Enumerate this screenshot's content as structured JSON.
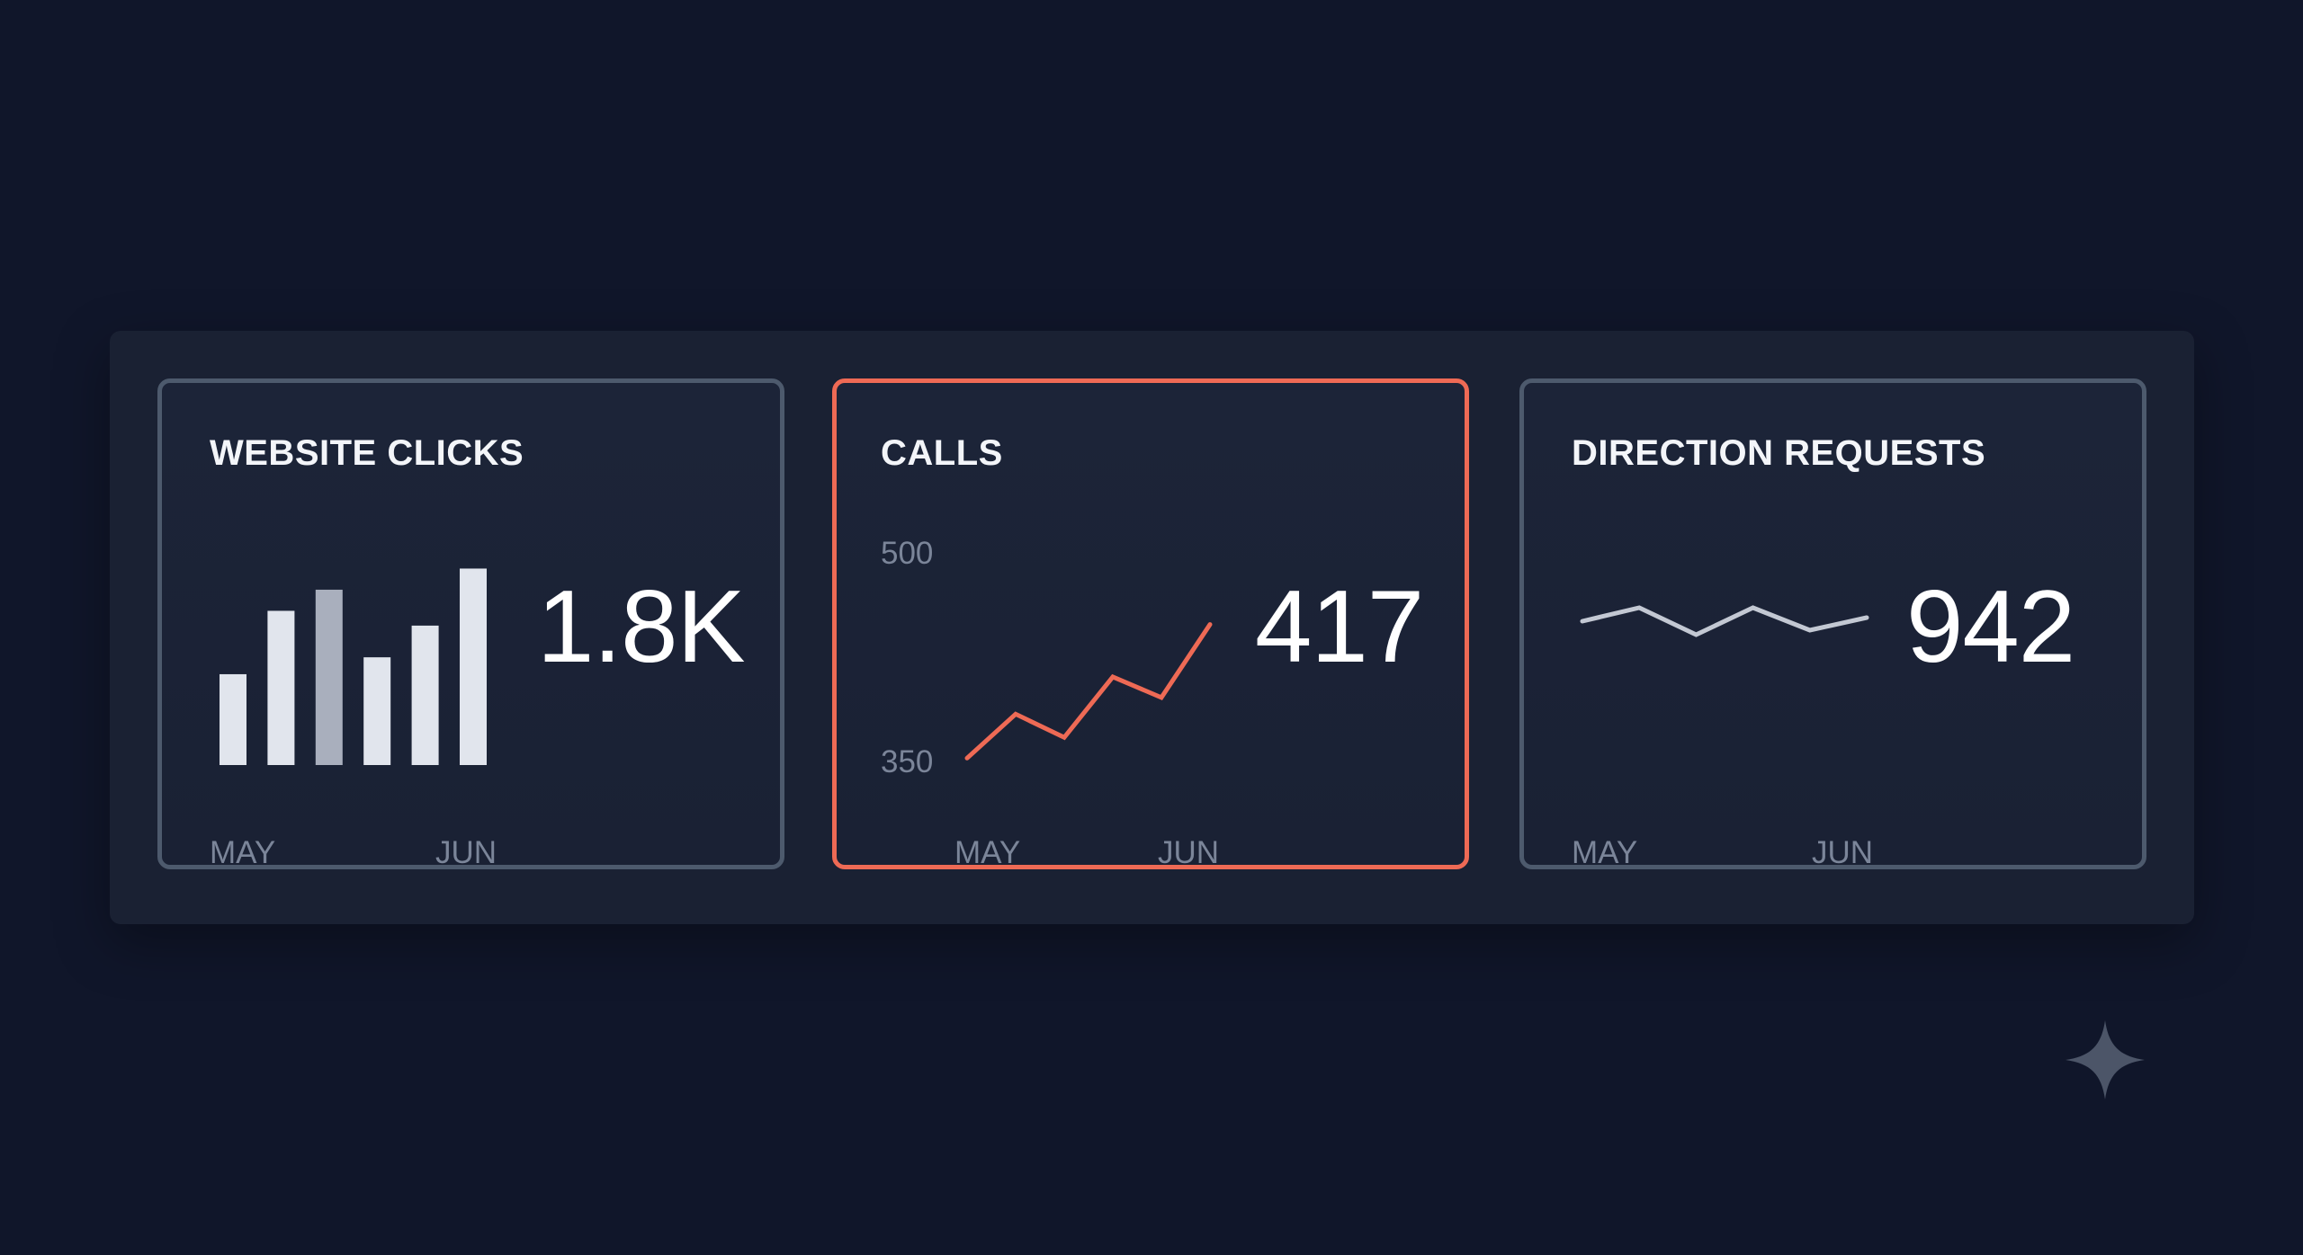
{
  "cards": [
    {
      "title": "WEBSITE CLICKS",
      "value": "1.8K",
      "x_labels": [
        "MAY",
        "JUN"
      ],
      "active": false
    },
    {
      "title": "CALLS",
      "value": "417",
      "x_labels": [
        "MAY",
        "JUN"
      ],
      "y_labels": [
        "500",
        "350"
      ],
      "active": true
    },
    {
      "title": "DIRECTION REQUESTS",
      "value": "942",
      "x_labels": [
        "MAY",
        "JUN"
      ],
      "active": false
    }
  ],
  "colors": {
    "background": "#10162a",
    "panel": "#1a2133",
    "card_border": "#4d5a6d",
    "active_border": "#ee6a55",
    "calls_line": "#ee6a55",
    "bars": "#e1e5ed",
    "bar_muted": "#a9afbd",
    "direction_line": "#c3c8d3",
    "sparkle": "#4c5568"
  },
  "icons": {
    "decoration": "sparkle-icon"
  },
  "chart_data": [
    {
      "type": "bar",
      "categories": [
        "",
        "",
        "",
        "",
        "",
        ""
      ],
      "values": [
        4.3,
        7.3,
        8.3,
        5.1,
        6.6,
        9.3
      ],
      "highlight_index": 2,
      "x_ticks": [
        "MAY",
        "JUN"
      ],
      "ylim": [
        0,
        10
      ]
    },
    {
      "type": "line",
      "x": [
        0,
        1,
        2,
        3,
        4,
        5
      ],
      "values": [
        355,
        387,
        370,
        414,
        399,
        452
      ],
      "ylim": [
        350,
        500
      ],
      "y_ticks": [
        "500",
        "350"
      ],
      "x_ticks": [
        "MAY",
        "JUN"
      ]
    },
    {
      "type": "line",
      "x": [
        0,
        1,
        2,
        3,
        4,
        5
      ],
      "values": [
        5,
        6.5,
        3.5,
        6.5,
        4,
        5.4
      ],
      "ylim": [
        0,
        10
      ],
      "x_ticks": [
        "MAY",
        "JUN"
      ]
    }
  ]
}
